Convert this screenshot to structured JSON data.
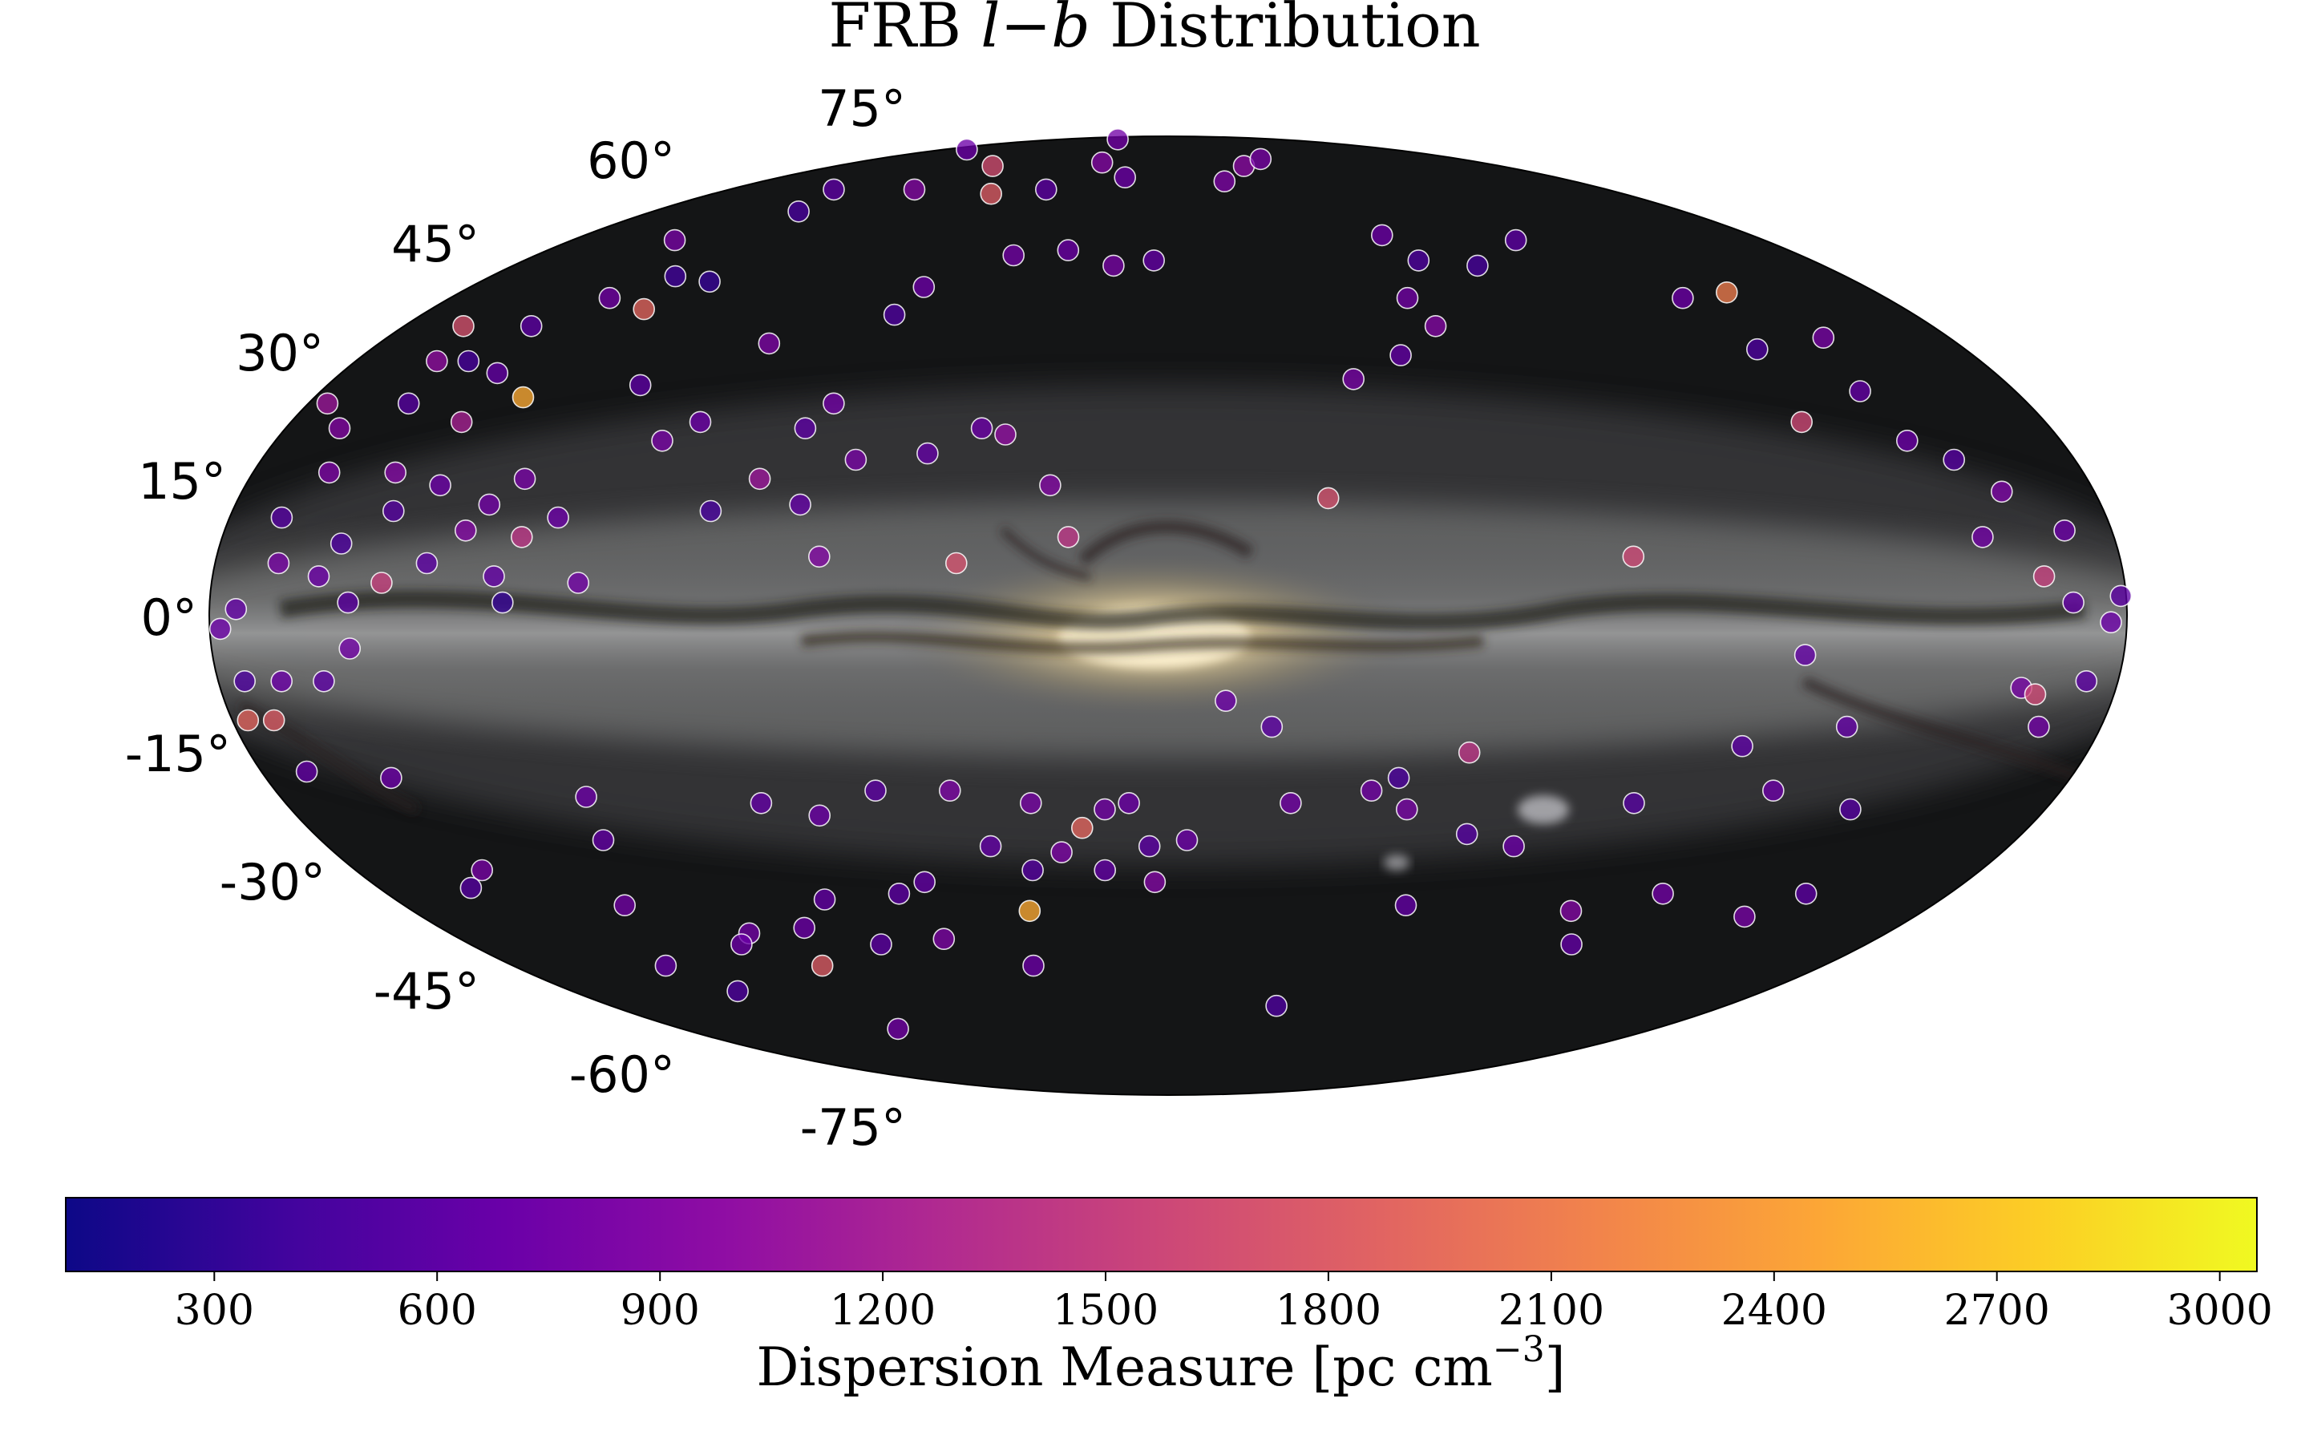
{
  "chart_data": {
    "type": "scatter",
    "title_parts": [
      "FRB ",
      "l",
      "−",
      "b",
      " Distribution"
    ],
    "projection": "mollweide",
    "background": "Milky Way all-sky image",
    "latitude_labels": [
      "75°",
      "60°",
      "45°",
      "30°",
      "15°",
      "0°",
      "-15°",
      "-30°",
      "-45°",
      "-60°",
      "-75°"
    ],
    "latitude_values": [
      75,
      60,
      45,
      30,
      15,
      0,
      -15,
      -30,
      -45,
      -60,
      -75
    ],
    "colorbar": {
      "label_main": "Dispersion Measure [pc cm",
      "label_exp": "−3",
      "label_close": "]",
      "colormap": "plasma",
      "range": [
        100,
        3050
      ],
      "ticks": [
        300,
        600,
        900,
        1200,
        1500,
        1800,
        2100,
        2400,
        2700,
        3000
      ],
      "tick_labels": [
        "300",
        "600",
        "900",
        "1200",
        "1500",
        "1800",
        "2100",
        "2400",
        "2700",
        "3000"
      ]
    },
    "points": [
      {
        "l": 129,
        "b": 68,
        "dm": 450
      },
      {
        "l": 162,
        "b": 84,
        "dm": 700
      },
      {
        "l": 104,
        "b": 73,
        "dm": 900
      },
      {
        "l": 95,
        "b": 79,
        "dm": 1650
      },
      {
        "l": 137,
        "b": 73,
        "dm": 600
      },
      {
        "l": 149,
        "b": 62,
        "dm": 800
      },
      {
        "l": 120,
        "b": 54,
        "dm": 350
      },
      {
        "l": 131,
        "b": 55,
        "dm": 400
      },
      {
        "l": 128,
        "b": 49,
        "dm": 1900
      },
      {
        "l": 140,
        "b": 51,
        "dm": 750
      },
      {
        "l": 150,
        "b": 46,
        "dm": 600
      },
      {
        "l": 159,
        "b": 33,
        "dm": 550
      },
      {
        "l": 136,
        "b": 34,
        "dm": 2500
      },
      {
        "l": 145,
        "b": 30,
        "dm": 1200
      },
      {
        "l": 146,
        "b": 38,
        "dm": 650
      },
      {
        "l": 155,
        "b": 40,
        "dm": 450
      },
      {
        "l": 152,
        "b": 22,
        "dm": 900
      },
      {
        "l": 142,
        "b": 20,
        "dm": 700
      },
      {
        "l": 149,
        "b": 16,
        "dm": 550
      },
      {
        "l": 157,
        "b": 11,
        "dm": 500
      },
      {
        "l": 165,
        "b": 22,
        "dm": 850
      },
      {
        "l": 160,
        "b": 6,
        "dm": 700
      },
      {
        "l": 154,
        "b": 2,
        "dm": 600
      },
      {
        "l": 148,
        "b": 5,
        "dm": 1500
      },
      {
        "l": 134,
        "b": 13,
        "dm": 900
      },
      {
        "l": 131,
        "b": 17,
        "dm": 750
      },
      {
        "l": 126,
        "b": 21,
        "dm": 800
      },
      {
        "l": 123,
        "b": 12,
        "dm": 1400
      },
      {
        "l": 117,
        "b": 15,
        "dm": 700
      },
      {
        "l": 127,
        "b": 6,
        "dm": 650
      },
      {
        "l": 111,
        "b": 5,
        "dm": 750
      },
      {
        "l": 125,
        "b": 2,
        "dm": 350
      },
      {
        "l": 140,
        "b": 8,
        "dm": 600
      },
      {
        "l": 169,
        "b": 29,
        "dm": 900
      },
      {
        "l": 170,
        "b": 15,
        "dm": 550
      },
      {
        "l": 162,
        "b": 40,
        "dm": 1000
      },
      {
        "l": 166,
        "b": 46,
        "dm": 1700
      },
      {
        "l": 176,
        "b": 33,
        "dm": 1100
      },
      {
        "l": 113,
        "b": 36,
        "dm": 600
      },
      {
        "l": 102,
        "b": 27,
        "dm": 800
      },
      {
        "l": 96,
        "b": 30,
        "dm": 700
      },
      {
        "l": 91,
        "b": 43,
        "dm": 850
      },
      {
        "l": 88,
        "b": 16,
        "dm": 450
      },
      {
        "l": 80,
        "b": 21,
        "dm": 1100
      },
      {
        "l": 71,
        "b": 17,
        "dm": 650
      },
      {
        "l": 66,
        "b": 9,
        "dm": 900
      },
      {
        "l": 70,
        "b": 33,
        "dm": 750
      },
      {
        "l": 74,
        "b": 29,
        "dm": 600
      },
      {
        "l": 62,
        "b": 24,
        "dm": 800
      },
      {
        "l": 66,
        "b": 48,
        "dm": 500
      },
      {
        "l": 63,
        "b": 53,
        "dm": 700
      },
      {
        "l": 48,
        "b": 25,
        "dm": 650
      },
      {
        "l": 38,
        "b": 29,
        "dm": 700
      },
      {
        "l": 33,
        "b": 28,
        "dm": 1000
      },
      {
        "l": 23,
        "b": 20,
        "dm": 900
      },
      {
        "l": 19,
        "b": 12,
        "dm": 1400
      },
      {
        "l": 40,
        "b": 8,
        "dm": 1700
      },
      {
        "l": 29,
        "b": 60,
        "dm": 700
      },
      {
        "l": 15,
        "b": 57,
        "dm": 800
      },
      {
        "l": 4,
        "b": 58,
        "dm": 650
      },
      {
        "l": 44,
        "b": 59,
        "dm": 750
      },
      {
        "l": 50,
        "b": 73,
        "dm": 600
      },
      {
        "l": 38,
        "b": 80,
        "dm": 900
      },
      {
        "l": 20,
        "b": 76,
        "dm": 700
      },
      {
        "l": 70,
        "b": 72,
        "dm": 1800
      },
      {
        "l": 84,
        "b": 88,
        "dm": 750
      },
      {
        "l": -25,
        "b": 75,
        "dm": 850
      },
      {
        "l": -41,
        "b": 79,
        "dm": 950
      },
      {
        "l": -57,
        "b": 81,
        "dm": 800
      },
      {
        "l": -66,
        "b": 63,
        "dm": 700
      },
      {
        "l": -60,
        "b": 51,
        "dm": 750
      },
      {
        "l": -52,
        "b": 41,
        "dm": 650
      },
      {
        "l": -40,
        "b": 37,
        "dm": 800
      },
      {
        "l": -70,
        "b": 58,
        "dm": 500
      },
      {
        "l": -63,
        "b": 46,
        "dm": 900
      },
      {
        "l": -85,
        "b": 57,
        "dm": 450
      },
      {
        "l": -105,
        "b": 62,
        "dm": 600
      },
      {
        "l": -129,
        "b": 51,
        "dm": 700
      },
      {
        "l": -142,
        "b": 52,
        "dm": 2100
      },
      {
        "l": -151,
        "b": 44,
        "dm": 800
      },
      {
        "l": -147,
        "b": 35,
        "dm": 650
      },
      {
        "l": -133,
        "b": 42,
        "dm": 500
      },
      {
        "l": -130,
        "b": 30,
        "dm": 1600
      },
      {
        "l": -149,
        "b": 27,
        "dm": 700
      },
      {
        "l": -156,
        "b": 24,
        "dm": 550
      },
      {
        "l": -162,
        "b": 19,
        "dm": 850
      },
      {
        "l": -171,
        "b": 13,
        "dm": 700
      },
      {
        "l": -155,
        "b": 12,
        "dm": 750
      },
      {
        "l": -165,
        "b": 6,
        "dm": 1500
      },
      {
        "l": -170,
        "b": 2,
        "dm": 650
      },
      {
        "l": -179,
        "b": 3,
        "dm": 600
      },
      {
        "l": -177,
        "b": -1,
        "dm": 700
      },
      {
        "l": -162,
        "b": -11,
        "dm": 800
      },
      {
        "l": -165,
        "b": -12,
        "dm": 1600
      },
      {
        "l": -174,
        "b": -10,
        "dm": 600
      },
      {
        "l": -168,
        "b": -17,
        "dm": 750
      },
      {
        "l": -120,
        "b": -6,
        "dm": 650
      },
      {
        "l": -88,
        "b": 9,
        "dm": 1600
      },
      {
        "l": -31,
        "b": 18,
        "dm": 1700
      },
      {
        "l": -95,
        "b": -29,
        "dm": 550
      },
      {
        "l": -112,
        "b": -20,
        "dm": 600
      },
      {
        "l": -122,
        "b": -27,
        "dm": 700
      },
      {
        "l": -131,
        "b": -17,
        "dm": 650
      },
      {
        "l": -140,
        "b": -30,
        "dm": 550
      },
      {
        "l": -147,
        "b": -44,
        "dm": 600
      },
      {
        "l": -139,
        "b": -48,
        "dm": 800
      },
      {
        "l": -114,
        "b": -44,
        "dm": 750
      },
      {
        "l": -104,
        "b": -53,
        "dm": 650
      },
      {
        "l": -96,
        "b": -47,
        "dm": 900
      },
      {
        "l": -74,
        "b": -36,
        "dm": 700
      },
      {
        "l": -63,
        "b": -34,
        "dm": 550
      },
      {
        "l": -56,
        "b": -46,
        "dm": 650
      },
      {
        "l": -59,
        "b": -21,
        "dm": 1400
      },
      {
        "l": -41,
        "b": -27,
        "dm": 750
      },
      {
        "l": -46,
        "b": -25,
        "dm": 500
      },
      {
        "l": -49,
        "b": -30,
        "dm": 800
      },
      {
        "l": -11,
        "b": -13,
        "dm": 700
      },
      {
        "l": -20,
        "b": -17,
        "dm": 600
      },
      {
        "l": -25,
        "b": -29,
        "dm": 750
      },
      {
        "l": -35,
        "b": -65,
        "dm": 500
      },
      {
        "l": -4,
        "b": -35,
        "dm": 700
      },
      {
        "l": 4,
        "b": -36,
        "dm": 600
      },
      {
        "l": 14,
        "b": -40,
        "dm": 650
      },
      {
        "l": 23,
        "b": -37,
        "dm": 850
      },
      {
        "l": 13,
        "b": -30,
        "dm": 750
      },
      {
        "l": 18,
        "b": -33,
        "dm": 1900
      },
      {
        "l": 3,
        "b": -42,
        "dm": 900
      },
      {
        "l": 30,
        "b": -40,
        "dm": 550
      },
      {
        "l": 38,
        "b": -36,
        "dm": 650
      },
      {
        "l": 28,
        "b": -29,
        "dm": 800
      },
      {
        "l": 8,
        "b": -29,
        "dm": 700
      },
      {
        "l": 33,
        "b": -47,
        "dm": 2500
      },
      {
        "l": 37,
        "b": -57,
        "dm": 700
      },
      {
        "l": 55,
        "b": -42,
        "dm": 650
      },
      {
        "l": 62,
        "b": -44,
        "dm": 600
      },
      {
        "l": 57,
        "b": -52,
        "dm": 850
      },
      {
        "l": 80,
        "b": -45,
        "dm": 650
      },
      {
        "l": 95,
        "b": -57,
        "dm": 1800
      },
      {
        "l": 90,
        "b": -50,
        "dm": 700
      },
      {
        "l": 105,
        "b": -51,
        "dm": 750
      },
      {
        "l": 72,
        "b": -31,
        "dm": 700
      },
      {
        "l": 83,
        "b": -29,
        "dm": 650
      },
      {
        "l": 59,
        "b": -27,
        "dm": 600
      },
      {
        "l": 44,
        "b": -27,
        "dm": 850
      },
      {
        "l": 74,
        "b": -53,
        "dm": 600
      },
      {
        "l": 118,
        "b": -28,
        "dm": 700
      },
      {
        "l": 120,
        "b": -35,
        "dm": 650
      },
      {
        "l": 128,
        "b": -46,
        "dm": 750
      },
      {
        "l": 152,
        "b": -40,
        "dm": 800
      },
      {
        "l": 159,
        "b": -43,
        "dm": 550
      },
      {
        "l": 155,
        "b": -25,
        "dm": 700
      },
      {
        "l": 171,
        "b": -24,
        "dm": 650
      },
      {
        "l": 172,
        "b": -16,
        "dm": 1800
      },
      {
        "l": 177,
        "b": -16,
        "dm": 1900
      },
      {
        "l": 168,
        "b": -10,
        "dm": 700
      },
      {
        "l": 160,
        "b": -10,
        "dm": 600
      },
      {
        "l": 154,
        "b": -5,
        "dm": 750
      },
      {
        "l": 175,
        "b": 1,
        "dm": 650
      },
      {
        "l": 178,
        "b": -2,
        "dm": 700
      },
      {
        "l": 175,
        "b": -10,
        "dm": 500
      },
      {
        "l": 168,
        "b": 8,
        "dm": 800
      },
      {
        "l": 110,
        "b": -53,
        "dm": 700
      },
      {
        "l": 100,
        "b": -70,
        "dm": 750
      },
      {
        "l": 138,
        "b": -57,
        "dm": 650
      },
      {
        "l": 130,
        "b": -62,
        "dm": 500
      }
    ]
  }
}
